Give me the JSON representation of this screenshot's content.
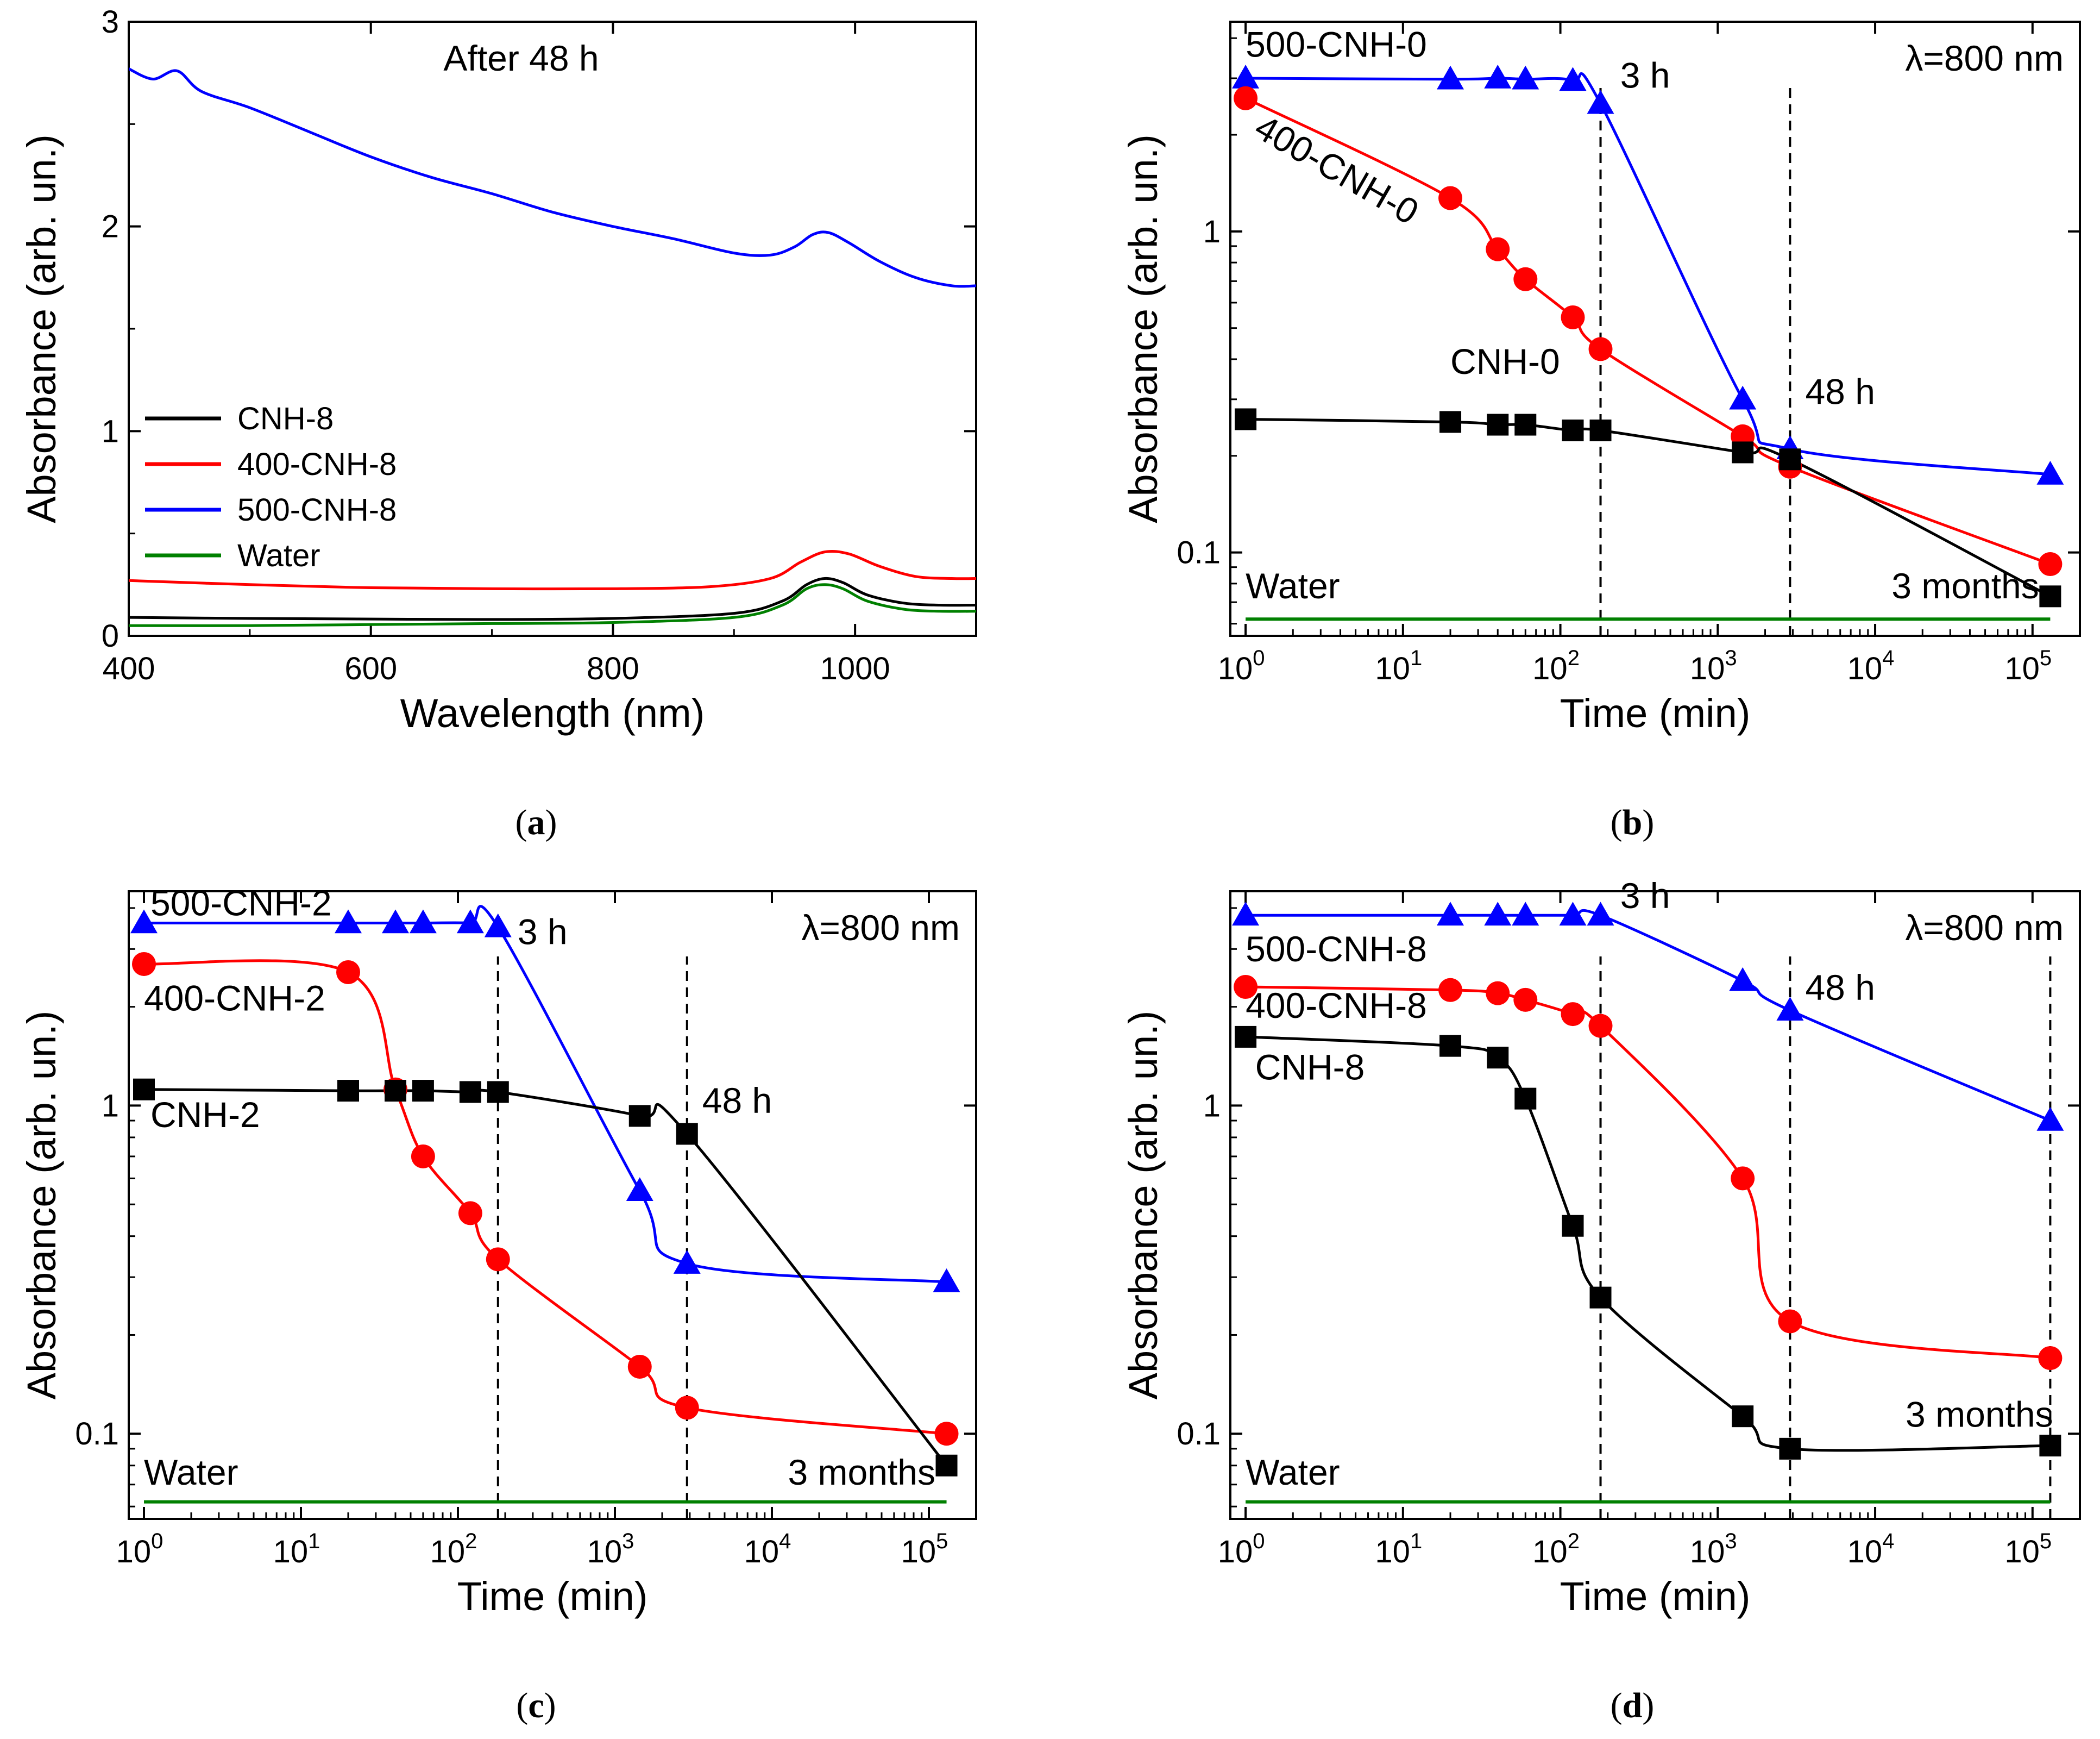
{
  "panel_captions": [
    "(a)",
    "(b)",
    "(c)",
    "(d)"
  ],
  "chart_data": [
    {
      "id": "a",
      "type": "line",
      "title": "After 48 h",
      "xlabel": "Wavelength (nm)",
      "ylabel": "Absorbance (arb. un.)",
      "xscale": "linear",
      "yscale": "linear",
      "xlim": [
        400,
        1100
      ],
      "ylim": [
        0,
        3
      ],
      "xticks": [
        400,
        600,
        800,
        1000
      ],
      "xtick_labels": [
        "400",
        "600",
        "800",
        "1000"
      ],
      "yticks": [
        0,
        1,
        2,
        3
      ],
      "ytick_labels": [
        "0",
        "1",
        "2",
        "3"
      ],
      "legend_position": "left-middle",
      "series": [
        {
          "name": "CNH-8",
          "color": "#000000",
          "marker": "none",
          "x": [
            400,
            500,
            600,
            700,
            800,
            900,
            940,
            960,
            975,
            990,
            1010,
            1040,
            1070,
            1100
          ],
          "y": [
            0.09,
            0.085,
            0.082,
            0.08,
            0.085,
            0.11,
            0.17,
            0.25,
            0.28,
            0.26,
            0.2,
            0.16,
            0.15,
            0.15
          ]
        },
        {
          "name": "400-CNH-8",
          "color": "#ff0000",
          "marker": "none",
          "x": [
            400,
            500,
            600,
            700,
            800,
            880,
            930,
            955,
            975,
            995,
            1020,
            1050,
            1080,
            1100
          ],
          "y": [
            0.27,
            0.25,
            0.235,
            0.23,
            0.23,
            0.24,
            0.28,
            0.36,
            0.41,
            0.4,
            0.34,
            0.29,
            0.28,
            0.28
          ]
        },
        {
          "name": "500-CNH-8",
          "color": "#0000ff",
          "marker": "none",
          "x": [
            400,
            420,
            440,
            460,
            500,
            550,
            600,
            650,
            700,
            750,
            800,
            850,
            900,
            930,
            950,
            965,
            978,
            995,
            1020,
            1050,
            1080,
            1100
          ],
          "y": [
            2.77,
            2.72,
            2.76,
            2.66,
            2.58,
            2.46,
            2.34,
            2.24,
            2.16,
            2.07,
            2.0,
            1.94,
            1.87,
            1.86,
            1.9,
            1.96,
            1.97,
            1.92,
            1.83,
            1.75,
            1.71,
            1.71
          ]
        },
        {
          "name": "Water",
          "color": "#008000",
          "marker": "none",
          "x": [
            400,
            500,
            600,
            700,
            800,
            900,
            940,
            960,
            975,
            990,
            1010,
            1040,
            1070,
            1100
          ],
          "y": [
            0.05,
            0.05,
            0.055,
            0.06,
            0.065,
            0.09,
            0.15,
            0.23,
            0.25,
            0.23,
            0.17,
            0.13,
            0.12,
            0.12
          ]
        }
      ],
      "annotations": []
    },
    {
      "id": "b",
      "type": "scatter",
      "title": "",
      "xlabel": "Time (min)",
      "ylabel": "Absorbance (arb. un.)",
      "xscale": "log",
      "yscale": "log",
      "xlim": [
        0.8,
        200000
      ],
      "ylim": [
        0.055,
        4.5
      ],
      "xticks": [
        1,
        10,
        100,
        1000,
        10000,
        100000
      ],
      "xtick_base": "10",
      "xtick_exponents": [
        "0",
        "1",
        "2",
        "3",
        "4",
        "5"
      ],
      "yticks": [
        0.1,
        1
      ],
      "ytick_labels": [
        "0.1",
        "1"
      ],
      "lambda_label": "λ=800 nm",
      "vlines": [
        180,
        2880
      ],
      "series": [
        {
          "name": "500-CNH-0",
          "color": "#0000ff",
          "marker": "triangle",
          "x": [
            1,
            20,
            40,
            60,
            120,
            180,
            1440,
            2880,
            129600
          ],
          "y": [
            3.0,
            2.98,
            3.0,
            2.98,
            2.95,
            2.5,
            0.3,
            0.21,
            0.175
          ]
        },
        {
          "name": "400-CNH-0",
          "color": "#ff0000",
          "marker": "circle",
          "x": [
            1,
            20,
            40,
            60,
            120,
            180,
            1440,
            2880,
            129600
          ],
          "y": [
            2.6,
            1.27,
            0.88,
            0.71,
            0.54,
            0.43,
            0.23,
            0.185,
            0.092
          ]
        },
        {
          "name": "CNH-0",
          "color": "#000000",
          "marker": "square",
          "x": [
            1,
            20,
            40,
            60,
            120,
            180,
            1440,
            2880,
            129600
          ],
          "y": [
            0.26,
            0.255,
            0.25,
            0.25,
            0.24,
            0.24,
            0.205,
            0.195,
            0.073
          ]
        },
        {
          "name": "Water",
          "color": "#008000",
          "marker": "none",
          "x": [
            1,
            129600
          ],
          "y": [
            0.062,
            0.062
          ]
        }
      ],
      "annotations": [
        {
          "text": "500-CNH-0",
          "x": 1,
          "y": 3.5,
          "rotate": 0,
          "anchor": "start"
        },
        {
          "text": "400-CNH-0",
          "x": 1.1,
          "y": 2.0,
          "rotate": 30,
          "anchor": "start"
        },
        {
          "text": "CNH-0",
          "x": 20,
          "y": 0.36,
          "rotate": 0,
          "anchor": "start"
        },
        {
          "text": "Water",
          "x": 1,
          "y": 0.072,
          "rotate": 0,
          "anchor": "start"
        },
        {
          "text": "3 h",
          "x": 240,
          "y": 2.8,
          "rotate": 0,
          "anchor": "start"
        },
        {
          "text": "48 h",
          "x": 3600,
          "y": 0.29,
          "rotate": 0,
          "anchor": "start"
        },
        {
          "text": "3 months",
          "x": 110000,
          "y": 0.072,
          "rotate": 0,
          "anchor": "end"
        }
      ]
    },
    {
      "id": "c",
      "type": "scatter",
      "title": "",
      "xlabel": "Time (min)",
      "ylabel": "Absorbance (arb. un.)",
      "xscale": "log",
      "yscale": "log",
      "xlim": [
        0.8,
        200000
      ],
      "ylim": [
        0.055,
        4.5
      ],
      "xticks": [
        1,
        10,
        100,
        1000,
        10000,
        100000
      ],
      "xtick_base": "10",
      "xtick_exponents": [
        "0",
        "1",
        "2",
        "3",
        "4",
        "5"
      ],
      "yticks": [
        0.1,
        1
      ],
      "ytick_labels": [
        "0.1",
        "1"
      ],
      "lambda_label": "λ=800 nm",
      "vlines": [
        180,
        2880
      ],
      "series": [
        {
          "name": "500-CNH-2",
          "color": "#0000ff",
          "marker": "triangle",
          "x": [
            1,
            20,
            40,
            60,
            120,
            180,
            1440,
            2880,
            129600
          ],
          "y": [
            3.6,
            3.6,
            3.6,
            3.6,
            3.6,
            3.5,
            0.55,
            0.33,
            0.29
          ]
        },
        {
          "name": "400-CNH-2",
          "color": "#ff0000",
          "marker": "circle",
          "x": [
            1,
            20,
            40,
            60,
            120,
            180,
            1440,
            2880,
            129600
          ],
          "y": [
            2.7,
            2.55,
            1.12,
            0.7,
            0.47,
            0.34,
            0.16,
            0.12,
            0.1
          ]
        },
        {
          "name": "CNH-2",
          "color": "#000000",
          "marker": "square",
          "x": [
            1,
            20,
            40,
            60,
            120,
            180,
            1440,
            2880,
            129600
          ],
          "y": [
            1.12,
            1.11,
            1.11,
            1.11,
            1.1,
            1.1,
            0.93,
            0.82,
            0.08
          ]
        },
        {
          "name": "Water",
          "color": "#008000",
          "marker": "none",
          "x": [
            1,
            129600
          ],
          "y": [
            0.062,
            0.062
          ]
        }
      ],
      "annotations": [
        {
          "text": "500-CNH-2",
          "x": 1.1,
          "y": 3.8,
          "rotate": 0,
          "anchor": "start"
        },
        {
          "text": "400-CNH-2",
          "x": 1.0,
          "y": 1.95,
          "rotate": 0,
          "anchor": "start"
        },
        {
          "text": "CNH-2",
          "x": 1.1,
          "y": 0.86,
          "rotate": 0,
          "anchor": "start"
        },
        {
          "text": "Water",
          "x": 1,
          "y": 0.07,
          "rotate": 0,
          "anchor": "start"
        },
        {
          "text": "3 h",
          "x": 240,
          "y": 3.1,
          "rotate": 0,
          "anchor": "start"
        },
        {
          "text": "48 h",
          "x": 3600,
          "y": 0.95,
          "rotate": 0,
          "anchor": "start"
        },
        {
          "text": "3 months",
          "x": 110000,
          "y": 0.07,
          "rotate": 0,
          "anchor": "end"
        }
      ]
    },
    {
      "id": "d",
      "type": "scatter",
      "title": "",
      "xlabel": "Time (min)",
      "ylabel": "Absorbance (arb. un.)",
      "xscale": "log",
      "yscale": "log",
      "xlim": [
        0.8,
        200000
      ],
      "ylim": [
        0.055,
        4.5
      ],
      "xticks": [
        1,
        10,
        100,
        1000,
        10000,
        100000
      ],
      "xtick_base": "10",
      "xtick_exponents": [
        "0",
        "1",
        "2",
        "3",
        "4",
        "5"
      ],
      "yticks": [
        0.1,
        1
      ],
      "ytick_labels": [
        "0.1",
        "1"
      ],
      "lambda_label": "λ=800 nm",
      "vlines": [
        180,
        2880,
        129600
      ],
      "series": [
        {
          "name": "500-CNH-8",
          "color": "#0000ff",
          "marker": "triangle",
          "x": [
            1,
            20,
            40,
            60,
            120,
            180,
            1440,
            2880,
            129600
          ],
          "y": [
            3.8,
            3.8,
            3.8,
            3.8,
            3.8,
            3.8,
            2.4,
            1.95,
            0.9
          ]
        },
        {
          "name": "400-CNH-8",
          "color": "#ff0000",
          "marker": "circle",
          "x": [
            1,
            20,
            40,
            60,
            120,
            180,
            1440,
            2880,
            129600
          ],
          "y": [
            2.3,
            2.25,
            2.2,
            2.1,
            1.9,
            1.75,
            0.6,
            0.22,
            0.17
          ]
        },
        {
          "name": "CNH-8",
          "color": "#000000",
          "marker": "square",
          "x": [
            1,
            20,
            40,
            60,
            120,
            180,
            1440,
            2880,
            129600
          ],
          "y": [
            1.62,
            1.52,
            1.4,
            1.05,
            0.43,
            0.26,
            0.113,
            0.09,
            0.092
          ]
        },
        {
          "name": "Water",
          "color": "#008000",
          "marker": "none",
          "x": [
            1,
            129600
          ],
          "y": [
            0.062,
            0.062
          ]
        }
      ],
      "annotations": [
        {
          "text": "500-CNH-8",
          "x": 1,
          "y": 2.75,
          "rotate": 0,
          "anchor": "start"
        },
        {
          "text": "400-CNH-8",
          "x": 1,
          "y": 1.85,
          "rotate": 0,
          "anchor": "start"
        },
        {
          "text": "CNH-8",
          "x": 1.15,
          "y": 1.2,
          "rotate": 0,
          "anchor": "start"
        },
        {
          "text": "Water",
          "x": 1,
          "y": 0.07,
          "rotate": 0,
          "anchor": "start"
        },
        {
          "text": "3 h",
          "x": 240,
          "y": 4.0,
          "rotate": 0,
          "anchor": "start"
        },
        {
          "text": "48 h",
          "x": 3600,
          "y": 2.1,
          "rotate": 0,
          "anchor": "start"
        },
        {
          "text": "3 months",
          "x": 135000,
          "y": 0.105,
          "rotate": 0,
          "anchor": "end"
        }
      ]
    }
  ]
}
